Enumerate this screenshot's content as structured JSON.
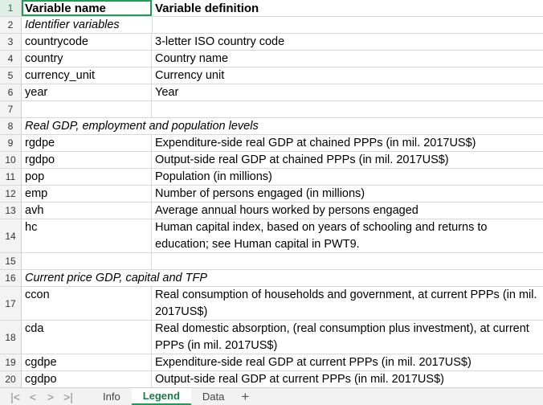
{
  "rows": [
    {
      "n": "1",
      "a": "Variable name",
      "b": "Variable definition"
    },
    {
      "n": "2",
      "a": "Identifier variables",
      "b": ""
    },
    {
      "n": "3",
      "a": "countrycode",
      "b": "3-letter ISO country code"
    },
    {
      "n": "4",
      "a": "country",
      "b": "Country name"
    },
    {
      "n": "5",
      "a": "currency_unit",
      "b": "Currency unit"
    },
    {
      "n": "6",
      "a": "year",
      "b": "Year"
    },
    {
      "n": "7",
      "a": "",
      "b": ""
    },
    {
      "n": "8",
      "a": "Real GDP, employment and population levels",
      "b": ""
    },
    {
      "n": "9",
      "a": "rgdpe",
      "b": "Expenditure-side real GDP at chained PPPs (in mil. 2017US$)"
    },
    {
      "n": "10",
      "a": "rgdpo",
      "b": "Output-side real GDP at chained PPPs (in mil. 2017US$)"
    },
    {
      "n": "11",
      "a": "pop",
      "b": "Population (in millions)"
    },
    {
      "n": "12",
      "a": "emp",
      "b": "Number of persons engaged (in millions)"
    },
    {
      "n": "13",
      "a": "avh",
      "b": "Average annual hours worked by persons engaged"
    },
    {
      "n": "14",
      "a": "hc",
      "b": "Human capital index, based on years of schooling and returns to education; see Human capital in PWT9."
    },
    {
      "n": "15",
      "a": "",
      "b": ""
    },
    {
      "n": "16",
      "a": "Current price GDP, capital and TFP",
      "b": ""
    },
    {
      "n": "17",
      "a": "ccon",
      "b": "Real consumption of households and government, at current PPPs (in mil. 2017US$)"
    },
    {
      "n": "18",
      "a": "cda",
      "b": "Real domestic absorption, (real consumption plus investment), at current PPPs (in mil. 2017US$)"
    },
    {
      "n": "19",
      "a": "cgdpe",
      "b": "Expenditure-side real GDP at current PPPs (in mil. 2017US$)"
    },
    {
      "n": "20",
      "a": "cgdpo",
      "b": "Output-side real GDP at current PPPs (in mil. 2017US$)"
    }
  ],
  "tabs": {
    "info": "Info",
    "legend": "Legend",
    "data": "Data",
    "add": "+"
  },
  "nav": {
    "first": "|<",
    "prev": "<",
    "next": ">",
    "last": ">|"
  }
}
